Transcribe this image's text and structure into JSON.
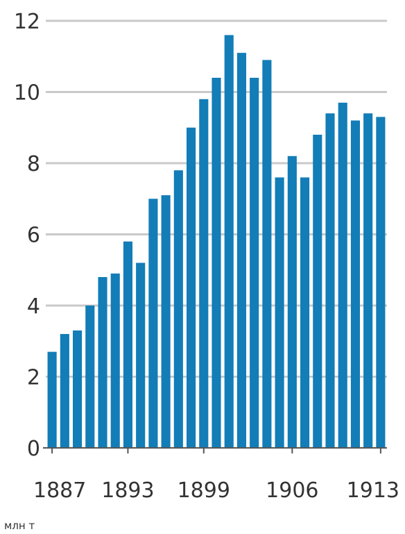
{
  "chart_data": {
    "type": "bar",
    "title": "",
    "xlabel": "",
    "ylabel": "",
    "unit_label": "млн т",
    "ylim": [
      0,
      12
    ],
    "yticks": [
      0,
      2,
      4,
      6,
      8,
      10,
      12
    ],
    "xtick_labels": [
      "1887",
      "1893",
      "1899",
      "1906",
      "1913"
    ],
    "grid": true,
    "legend": "none",
    "bar_color": "#127DB7",
    "grid_color": "#c9c9c9",
    "categories": [
      "1887",
      "1888",
      "1889",
      "1890",
      "1891",
      "1892",
      "1893",
      "1894",
      "1895",
      "1896",
      "1897",
      "1898",
      "1899",
      "1900",
      "1901",
      "1902",
      "1903",
      "1904",
      "1905",
      "1906",
      "1907",
      "1908",
      "1909",
      "1910",
      "1911",
      "1912",
      "1913"
    ],
    "values": [
      2.7,
      3.2,
      3.3,
      4.0,
      4.8,
      4.9,
      5.8,
      5.2,
      7.0,
      7.1,
      7.8,
      9.0,
      9.8,
      10.4,
      11.6,
      11.1,
      10.4,
      10.9,
      7.6,
      8.2,
      7.6,
      8.8,
      9.4,
      9.7,
      9.2,
      9.4,
      9.3
    ]
  }
}
